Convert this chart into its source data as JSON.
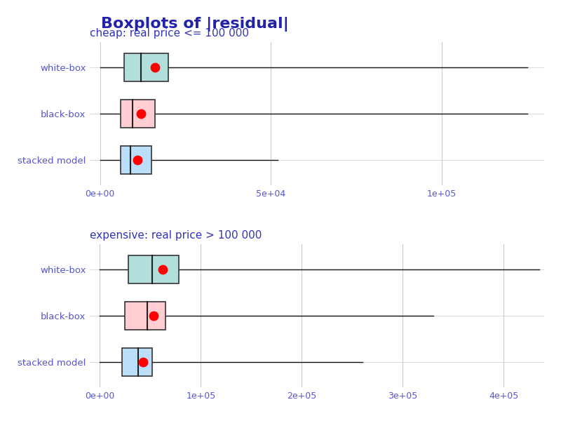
{
  "title": "Boxplots of |residual|",
  "title_color": "#2222aa",
  "title_fontsize": 16,
  "subtitle_color": "#3333bb",
  "subtitle_fontsize": 11,
  "label_color": "#5555cc",
  "tick_color": "#5555cc",
  "background_color": "#ffffff",
  "grid_color": "#cccccc",
  "cheap": {
    "subtitle": "cheap: real price <= 100 000",
    "xlim": [
      -3000,
      130000
    ],
    "xticks": [
      0,
      50000,
      100000
    ],
    "xtick_labels": [
      "0e+00",
      "5e+04",
      "1e+05"
    ],
    "models": [
      "white-box",
      "black-box",
      "stacked model"
    ],
    "colors": [
      "#b2dfdb",
      "#ffcdd2",
      "#bbdefb"
    ],
    "box_data": [
      {
        "whislo": 0,
        "q1": 7000,
        "med": 12000,
        "q3": 20000,
        "whishi": 125000,
        "mae": 16000
      },
      {
        "whislo": 0,
        "q1": 6000,
        "med": 9500,
        "q3": 16000,
        "whishi": 125000,
        "mae": 12000
      },
      {
        "whislo": 0,
        "q1": 6000,
        "med": 9000,
        "q3": 15000,
        "whishi": 52000,
        "mae": 11000
      }
    ]
  },
  "expensive": {
    "subtitle": "expensive: real price > 100 000",
    "xlim": [
      -10000,
      440000
    ],
    "xticks": [
      0,
      100000,
      200000,
      300000,
      400000
    ],
    "xtick_labels": [
      "0e+00",
      "1e+05",
      "2e+05",
      "3e+05",
      "4e+05"
    ],
    "models": [
      "white-box",
      "black-box",
      "stacked model"
    ],
    "colors": [
      "#b2dfdb",
      "#ffcdd2",
      "#bbdefb"
    ],
    "box_data": [
      {
        "whislo": 0,
        "q1": 28000,
        "med": 52000,
        "q3": 78000,
        "whishi": 435000,
        "mae": 62000
      },
      {
        "whislo": 0,
        "q1": 25000,
        "med": 47000,
        "q3": 65000,
        "whishi": 330000,
        "mae": 53000
      },
      {
        "whislo": 0,
        "q1": 22000,
        "med": 38000,
        "q3": 52000,
        "whishi": 260000,
        "mae": 43000
      }
    ]
  },
  "mae_color": "#ff0000",
  "mae_size": 80,
  "box_linecolor": "#333333",
  "whisker_color": "#111111",
  "median_color": "#222222"
}
